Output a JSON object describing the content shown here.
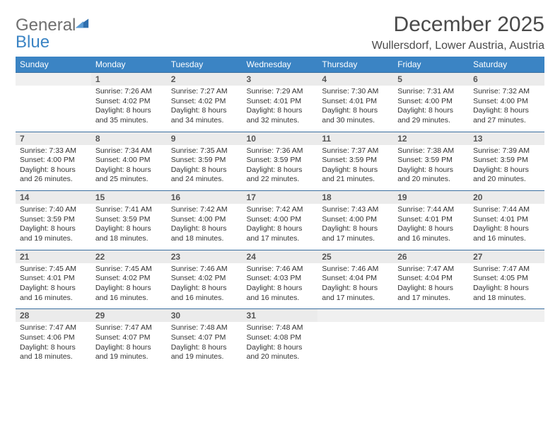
{
  "brand": {
    "word1": "General",
    "word2": "Blue",
    "word1_color": "#6f6f6f",
    "word2_color": "#3b84c4",
    "mark_color": "#2f6fae"
  },
  "title": "December 2025",
  "location": "Wullersdorf, Lower Austria, Austria",
  "colors": {
    "header_bg": "#3b84c4",
    "header_text": "#ffffff",
    "row_rule": "#3b6fa0",
    "daynum_bg": "#ebebeb",
    "daynum_text": "#555555",
    "body_text": "#333333"
  },
  "day_headers": [
    "Sunday",
    "Monday",
    "Tuesday",
    "Wednesday",
    "Thursday",
    "Friday",
    "Saturday"
  ],
  "weeks": [
    [
      {
        "empty": true
      },
      {
        "n": "1",
        "sr": "Sunrise: 7:26 AM",
        "ss": "Sunset: 4:02 PM",
        "d1": "Daylight: 8 hours",
        "d2": "and 35 minutes."
      },
      {
        "n": "2",
        "sr": "Sunrise: 7:27 AM",
        "ss": "Sunset: 4:02 PM",
        "d1": "Daylight: 8 hours",
        "d2": "and 34 minutes."
      },
      {
        "n": "3",
        "sr": "Sunrise: 7:29 AM",
        "ss": "Sunset: 4:01 PM",
        "d1": "Daylight: 8 hours",
        "d2": "and 32 minutes."
      },
      {
        "n": "4",
        "sr": "Sunrise: 7:30 AM",
        "ss": "Sunset: 4:01 PM",
        "d1": "Daylight: 8 hours",
        "d2": "and 30 minutes."
      },
      {
        "n": "5",
        "sr": "Sunrise: 7:31 AM",
        "ss": "Sunset: 4:00 PM",
        "d1": "Daylight: 8 hours",
        "d2": "and 29 minutes."
      },
      {
        "n": "6",
        "sr": "Sunrise: 7:32 AM",
        "ss": "Sunset: 4:00 PM",
        "d1": "Daylight: 8 hours",
        "d2": "and 27 minutes."
      }
    ],
    [
      {
        "n": "7",
        "sr": "Sunrise: 7:33 AM",
        "ss": "Sunset: 4:00 PM",
        "d1": "Daylight: 8 hours",
        "d2": "and 26 minutes."
      },
      {
        "n": "8",
        "sr": "Sunrise: 7:34 AM",
        "ss": "Sunset: 4:00 PM",
        "d1": "Daylight: 8 hours",
        "d2": "and 25 minutes."
      },
      {
        "n": "9",
        "sr": "Sunrise: 7:35 AM",
        "ss": "Sunset: 3:59 PM",
        "d1": "Daylight: 8 hours",
        "d2": "and 24 minutes."
      },
      {
        "n": "10",
        "sr": "Sunrise: 7:36 AM",
        "ss": "Sunset: 3:59 PM",
        "d1": "Daylight: 8 hours",
        "d2": "and 22 minutes."
      },
      {
        "n": "11",
        "sr": "Sunrise: 7:37 AM",
        "ss": "Sunset: 3:59 PM",
        "d1": "Daylight: 8 hours",
        "d2": "and 21 minutes."
      },
      {
        "n": "12",
        "sr": "Sunrise: 7:38 AM",
        "ss": "Sunset: 3:59 PM",
        "d1": "Daylight: 8 hours",
        "d2": "and 20 minutes."
      },
      {
        "n": "13",
        "sr": "Sunrise: 7:39 AM",
        "ss": "Sunset: 3:59 PM",
        "d1": "Daylight: 8 hours",
        "d2": "and 20 minutes."
      }
    ],
    [
      {
        "n": "14",
        "sr": "Sunrise: 7:40 AM",
        "ss": "Sunset: 3:59 PM",
        "d1": "Daylight: 8 hours",
        "d2": "and 19 minutes."
      },
      {
        "n": "15",
        "sr": "Sunrise: 7:41 AM",
        "ss": "Sunset: 3:59 PM",
        "d1": "Daylight: 8 hours",
        "d2": "and 18 minutes."
      },
      {
        "n": "16",
        "sr": "Sunrise: 7:42 AM",
        "ss": "Sunset: 4:00 PM",
        "d1": "Daylight: 8 hours",
        "d2": "and 18 minutes."
      },
      {
        "n": "17",
        "sr": "Sunrise: 7:42 AM",
        "ss": "Sunset: 4:00 PM",
        "d1": "Daylight: 8 hours",
        "d2": "and 17 minutes."
      },
      {
        "n": "18",
        "sr": "Sunrise: 7:43 AM",
        "ss": "Sunset: 4:00 PM",
        "d1": "Daylight: 8 hours",
        "d2": "and 17 minutes."
      },
      {
        "n": "19",
        "sr": "Sunrise: 7:44 AM",
        "ss": "Sunset: 4:01 PM",
        "d1": "Daylight: 8 hours",
        "d2": "and 16 minutes."
      },
      {
        "n": "20",
        "sr": "Sunrise: 7:44 AM",
        "ss": "Sunset: 4:01 PM",
        "d1": "Daylight: 8 hours",
        "d2": "and 16 minutes."
      }
    ],
    [
      {
        "n": "21",
        "sr": "Sunrise: 7:45 AM",
        "ss": "Sunset: 4:01 PM",
        "d1": "Daylight: 8 hours",
        "d2": "and 16 minutes."
      },
      {
        "n": "22",
        "sr": "Sunrise: 7:45 AM",
        "ss": "Sunset: 4:02 PM",
        "d1": "Daylight: 8 hours",
        "d2": "and 16 minutes."
      },
      {
        "n": "23",
        "sr": "Sunrise: 7:46 AM",
        "ss": "Sunset: 4:02 PM",
        "d1": "Daylight: 8 hours",
        "d2": "and 16 minutes."
      },
      {
        "n": "24",
        "sr": "Sunrise: 7:46 AM",
        "ss": "Sunset: 4:03 PM",
        "d1": "Daylight: 8 hours",
        "d2": "and 16 minutes."
      },
      {
        "n": "25",
        "sr": "Sunrise: 7:46 AM",
        "ss": "Sunset: 4:04 PM",
        "d1": "Daylight: 8 hours",
        "d2": "and 17 minutes."
      },
      {
        "n": "26",
        "sr": "Sunrise: 7:47 AM",
        "ss": "Sunset: 4:04 PM",
        "d1": "Daylight: 8 hours",
        "d2": "and 17 minutes."
      },
      {
        "n": "27",
        "sr": "Sunrise: 7:47 AM",
        "ss": "Sunset: 4:05 PM",
        "d1": "Daylight: 8 hours",
        "d2": "and 18 minutes."
      }
    ],
    [
      {
        "n": "28",
        "sr": "Sunrise: 7:47 AM",
        "ss": "Sunset: 4:06 PM",
        "d1": "Daylight: 8 hours",
        "d2": "and 18 minutes."
      },
      {
        "n": "29",
        "sr": "Sunrise: 7:47 AM",
        "ss": "Sunset: 4:07 PM",
        "d1": "Daylight: 8 hours",
        "d2": "and 19 minutes."
      },
      {
        "n": "30",
        "sr": "Sunrise: 7:48 AM",
        "ss": "Sunset: 4:07 PM",
        "d1": "Daylight: 8 hours",
        "d2": "and 19 minutes."
      },
      {
        "n": "31",
        "sr": "Sunrise: 7:48 AM",
        "ss": "Sunset: 4:08 PM",
        "d1": "Daylight: 8 hours",
        "d2": "and 20 minutes."
      },
      {
        "empty": true
      },
      {
        "empty": true
      },
      {
        "empty": true
      }
    ]
  ]
}
